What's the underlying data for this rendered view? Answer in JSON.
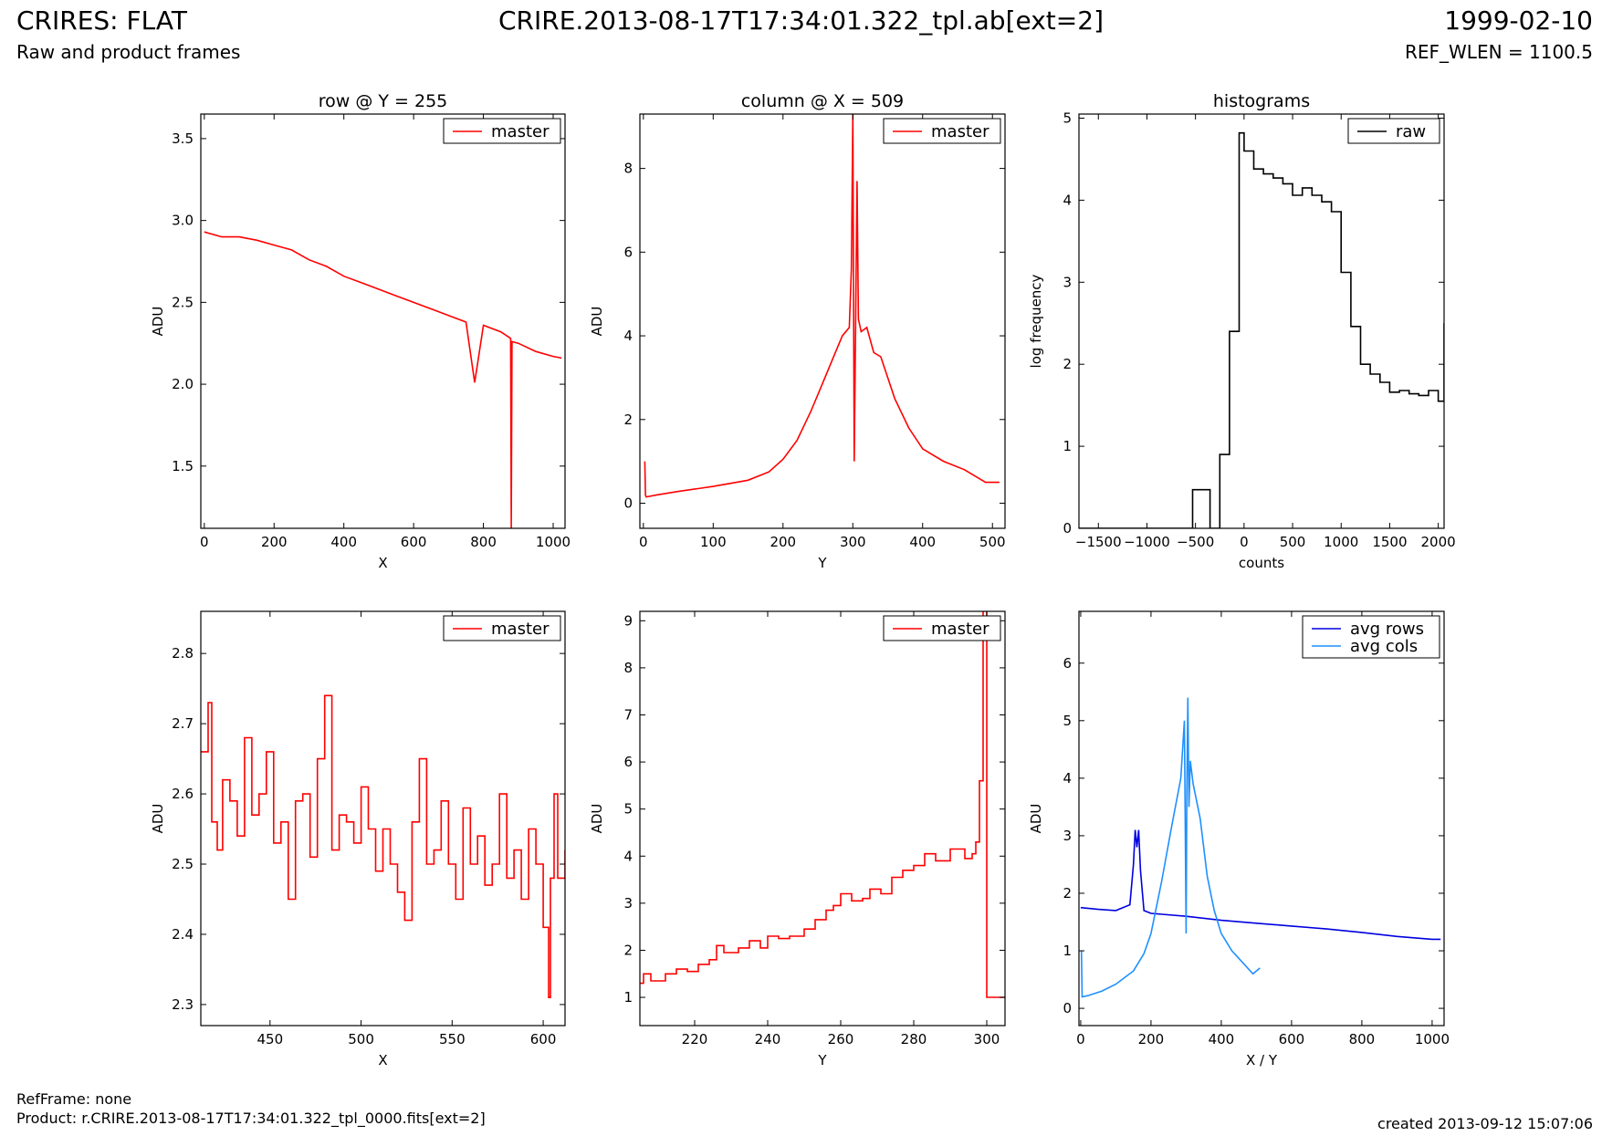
{
  "header": {
    "title_left": "CRIRES: FLAT",
    "subtitle_left": "Raw and product frames",
    "title_center": "CRIRE.2013-08-17T17:34:01.322_tpl.ab[ext=2]",
    "title_right": "1999-02-10",
    "subtitle_right": "REF_WLEN = 1100.5"
  },
  "footer": {
    "refframe": "RefFrame: none",
    "product": "Product: r.CRIRE.2013-08-17T17:34:01.322_tpl_0000.fits[ext=2]",
    "created": "created 2013-09-12 15:07:06"
  },
  "chart_data": [
    {
      "type": "line",
      "title": "row @ Y = 255",
      "xlabel": "X",
      "ylabel": "ADU",
      "xlim": [
        -10,
        1034
      ],
      "ylim": [
        1.12,
        3.65
      ],
      "xticks": [
        0,
        200,
        400,
        600,
        800,
        1000
      ],
      "yticks": [
        1.5,
        2.0,
        2.5,
        3.0,
        3.5
      ],
      "ytick_labels": [
        "1.5",
        "2.0",
        "2.5",
        "3.0",
        "3.5"
      ],
      "legend": "top-right",
      "grid": false,
      "series": [
        {
          "name": "master",
          "color": "#ff0000",
          "x": [
            0,
            50,
            100,
            150,
            200,
            250,
            300,
            350,
            400,
            450,
            500,
            550,
            600,
            650,
            700,
            750,
            775,
            800,
            850,
            878,
            880,
            882,
            900,
            950,
            1000,
            1024
          ],
          "y": [
            2.93,
            2.9,
            2.9,
            2.88,
            2.85,
            2.82,
            2.76,
            2.72,
            2.66,
            2.62,
            2.58,
            2.54,
            2.5,
            2.46,
            2.42,
            2.38,
            2.01,
            2.36,
            2.32,
            2.28,
            1.12,
            2.26,
            2.25,
            2.2,
            2.17,
            2.16
          ]
        }
      ]
    },
    {
      "type": "line",
      "title": "column @ X = 509",
      "xlabel": "Y",
      "ylabel": "ADU",
      "xlim": [
        -5,
        518
      ],
      "ylim": [
        -0.6,
        9.3
      ],
      "xticks": [
        0,
        100,
        200,
        300,
        400,
        500
      ],
      "yticks": [
        0,
        2,
        4,
        6,
        8
      ],
      "ytick_labels": [
        "0",
        "2",
        "4",
        "6",
        "8"
      ],
      "legend": "top-right",
      "grid": false,
      "series": [
        {
          "name": "master",
          "color": "#ff0000",
          "x": [
            2,
            3,
            4,
            20,
            50,
            100,
            150,
            180,
            200,
            220,
            240,
            260,
            275,
            285,
            295,
            298,
            300,
            302,
            304,
            306,
            308,
            312,
            320,
            330,
            340,
            360,
            380,
            400,
            430,
            460,
            490,
            510
          ],
          "y": [
            1.0,
            0.2,
            0.15,
            0.2,
            0.28,
            0.4,
            0.55,
            0.75,
            1.05,
            1.5,
            2.2,
            3.0,
            3.6,
            4.0,
            4.2,
            5.6,
            9.3,
            1.0,
            4.2,
            7.7,
            4.4,
            4.1,
            4.2,
            3.6,
            3.5,
            2.5,
            1.8,
            1.3,
            1.0,
            0.8,
            0.5,
            0.5
          ]
        }
      ]
    },
    {
      "type": "line",
      "title": "histograms",
      "xlabel": "counts",
      "ylabel": "log frequency",
      "xlim": [
        -1700,
        2060
      ],
      "ylim": [
        0,
        5.05
      ],
      "xticks": [
        -1500,
        -1000,
        -500,
        0,
        500,
        1000,
        1500,
        2000
      ],
      "yticks": [
        0,
        1,
        2,
        3,
        4,
        5
      ],
      "ytick_labels": [
        "0",
        "1",
        "2",
        "3",
        "4",
        "5"
      ],
      "legend": "top-right",
      "grid": false,
      "series": [
        {
          "name": "raw",
          "color": "#000000",
          "step": true,
          "x": [
            -1700,
            -530,
            -530,
            -350,
            -350,
            -270,
            -270,
            -250,
            -150,
            -50,
            0,
            100,
            200,
            300,
            400,
            500,
            600,
            700,
            800,
            900,
            1000,
            1100,
            1200,
            1300,
            1400,
            1500,
            1600,
            1700,
            1800,
            1900,
            2000,
            2060
          ],
          "y": [
            0,
            0,
            0.47,
            0.47,
            0,
            0,
            0,
            0.9,
            2.4,
            4.82,
            4.6,
            4.38,
            4.32,
            4.27,
            4.2,
            4.06,
            4.15,
            4.06,
            3.98,
            3.86,
            3.12,
            2.46,
            2.0,
            1.88,
            1.78,
            1.66,
            1.68,
            1.64,
            1.62,
            1.68,
            1.55,
            2.5
          ]
        }
      ]
    },
    {
      "type": "line",
      "title": "",
      "xlabel": "X",
      "ylabel": "ADU",
      "xlim": [
        412,
        612
      ],
      "ylim": [
        2.27,
        2.86
      ],
      "xticks": [
        450,
        500,
        550,
        600
      ],
      "yticks": [
        2.3,
        2.4,
        2.5,
        2.6,
        2.7,
        2.8
      ],
      "ytick_labels": [
        "2.3",
        "2.4",
        "2.5",
        "2.6",
        "2.7",
        "2.8"
      ],
      "legend": "top-right",
      "grid": false,
      "series": [
        {
          "name": "master",
          "color": "#ff0000",
          "step": true,
          "x": [
            412,
            416,
            418,
            421,
            424,
            428,
            432,
            436,
            440,
            444,
            448,
            452,
            456,
            460,
            464,
            468,
            472,
            476,
            480,
            484,
            488,
            492,
            496,
            500,
            504,
            508,
            512,
            516,
            520,
            524,
            528,
            532,
            536,
            540,
            544,
            548,
            552,
            556,
            560,
            564,
            568,
            572,
            576,
            580,
            584,
            588,
            592,
            596,
            600,
            603,
            604,
            606,
            608,
            612
          ],
          "y": [
            2.66,
            2.73,
            2.56,
            2.52,
            2.62,
            2.59,
            2.54,
            2.68,
            2.57,
            2.6,
            2.66,
            2.53,
            2.56,
            2.45,
            2.59,
            2.6,
            2.51,
            2.65,
            2.74,
            2.52,
            2.57,
            2.56,
            2.53,
            2.61,
            2.55,
            2.49,
            2.55,
            2.5,
            2.46,
            2.42,
            2.56,
            2.65,
            2.5,
            2.52,
            2.59,
            2.5,
            2.45,
            2.58,
            2.5,
            2.54,
            2.47,
            2.5,
            2.6,
            2.48,
            2.52,
            2.45,
            2.55,
            2.5,
            2.41,
            2.31,
            2.48,
            2.6,
            2.48,
            2.52
          ]
        }
      ]
    },
    {
      "type": "line",
      "title": "",
      "xlabel": "Y",
      "ylabel": "ADU",
      "xlim": [
        205,
        305
      ],
      "ylim": [
        0.4,
        9.2
      ],
      "xticks": [
        220,
        240,
        260,
        280,
        300
      ],
      "yticks": [
        1,
        2,
        3,
        4,
        5,
        6,
        7,
        8,
        9
      ],
      "ytick_labels": [
        "1",
        "2",
        "3",
        "4",
        "5",
        "6",
        "7",
        "8",
        "9"
      ],
      "legend": "top-right",
      "grid": false,
      "series": [
        {
          "name": "master",
          "color": "#ff0000",
          "step": true,
          "x": [
            205,
            206,
            208,
            212,
            215,
            218,
            221,
            224,
            226,
            228,
            232,
            235,
            238,
            240,
            243,
            246,
            250,
            253,
            256,
            258,
            260,
            263,
            266,
            268,
            271,
            274,
            277,
            280,
            283,
            286,
            290,
            294,
            296,
            297,
            298,
            299,
            300,
            301,
            305
          ],
          "y": [
            1.3,
            1.5,
            1.35,
            1.5,
            1.6,
            1.55,
            1.7,
            1.8,
            2.1,
            1.95,
            2.05,
            2.2,
            2.05,
            2.3,
            2.25,
            2.3,
            2.45,
            2.65,
            2.85,
            2.95,
            3.2,
            3.05,
            3.1,
            3.3,
            3.2,
            3.55,
            3.7,
            3.8,
            4.05,
            3.9,
            4.15,
            3.95,
            4.05,
            4.3,
            5.6,
            9.3,
            1.0,
            1.0,
            1.0
          ]
        }
      ]
    },
    {
      "type": "line",
      "title": "",
      "xlabel": "X / Y",
      "ylabel": "ADU",
      "xlim": [
        -5,
        1034
      ],
      "ylim": [
        -0.3,
        6.9
      ],
      "xticks": [
        0,
        200,
        400,
        600,
        800,
        1000
      ],
      "yticks": [
        0,
        1,
        2,
        3,
        4,
        5,
        6
      ],
      "ytick_labels": [
        "0",
        "1",
        "2",
        "3",
        "4",
        "5",
        "6"
      ],
      "legend": "top-right",
      "grid": false,
      "series": [
        {
          "name": "avg rows",
          "color": "#0000e0",
          "x": [
            0,
            50,
            100,
            140,
            150,
            155,
            160,
            165,
            170,
            180,
            200,
            300,
            400,
            500,
            600,
            700,
            800,
            900,
            1000,
            1024
          ],
          "y": [
            1.75,
            1.72,
            1.7,
            1.8,
            2.5,
            3.1,
            2.8,
            3.1,
            2.4,
            1.7,
            1.65,
            1.6,
            1.53,
            1.48,
            1.43,
            1.38,
            1.32,
            1.25,
            1.2,
            1.2
          ]
        },
        {
          "name": "avg cols",
          "color": "#1e90ff",
          "x": [
            2,
            4,
            20,
            60,
            100,
            150,
            180,
            200,
            230,
            260,
            285,
            295,
            300,
            302,
            305,
            308,
            312,
            320,
            340,
            360,
            380,
            400,
            430,
            460,
            490,
            510
          ],
          "y": [
            1.0,
            0.2,
            0.22,
            0.3,
            0.42,
            0.65,
            0.95,
            1.3,
            2.2,
            3.2,
            4.0,
            5.0,
            1.3,
            3.8,
            5.4,
            3.5,
            4.3,
            3.9,
            3.3,
            2.3,
            1.7,
            1.3,
            1.0,
            0.8,
            0.6,
            0.7
          ]
        }
      ]
    }
  ]
}
